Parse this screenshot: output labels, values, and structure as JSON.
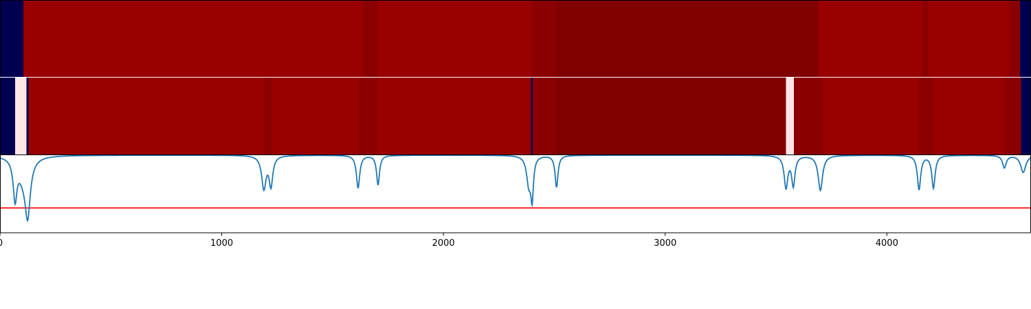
{
  "chart_data": [
    {
      "type": "heatmap",
      "panel": "top",
      "xlim": [
        0,
        4650
      ],
      "segments": [
        {
          "x0": 0,
          "x1": 105,
          "color": "#000050"
        },
        {
          "x0": 105,
          "x1": 1640,
          "color": "#990000"
        },
        {
          "x0": 1640,
          "x1": 1700,
          "color": "#8a0000"
        },
        {
          "x0": 1700,
          "x1": 2400,
          "color": "#990000"
        },
        {
          "x0": 2400,
          "x1": 2510,
          "color": "#8a0000"
        },
        {
          "x0": 2510,
          "x1": 3690,
          "color": "#800000"
        },
        {
          "x0": 3690,
          "x1": 4160,
          "color": "#990000"
        },
        {
          "x0": 4160,
          "x1": 4185,
          "color": "#8c0000"
        },
        {
          "x0": 4185,
          "x1": 4550,
          "color": "#990000"
        },
        {
          "x0": 4550,
          "x1": 4600,
          "color": "#8a0000"
        },
        {
          "x0": 4600,
          "x1": 4650,
          "color": "#000050"
        }
      ]
    },
    {
      "type": "heatmap",
      "panel": "middle",
      "xlim": [
        0,
        4650
      ],
      "segments": [
        {
          "x0": 0,
          "x1": 68,
          "color": "#000050"
        },
        {
          "x0": 68,
          "x1": 120,
          "color": "#ffe6e6"
        },
        {
          "x0": 120,
          "x1": 128,
          "color": "#000050"
        },
        {
          "x0": 128,
          "x1": 1190,
          "color": "#990000"
        },
        {
          "x0": 1190,
          "x1": 1225,
          "color": "#8a0000"
        },
        {
          "x0": 1225,
          "x1": 1615,
          "color": "#990000"
        },
        {
          "x0": 1615,
          "x1": 1700,
          "color": "#8c0000"
        },
        {
          "x0": 1700,
          "x1": 2395,
          "color": "#990000"
        },
        {
          "x0": 2395,
          "x1": 2402,
          "color": "#000050"
        },
        {
          "x0": 2402,
          "x1": 2510,
          "color": "#8a0000"
        },
        {
          "x0": 2510,
          "x1": 3545,
          "color": "#800000"
        },
        {
          "x0": 3545,
          "x1": 3580,
          "color": "#ffe6e6"
        },
        {
          "x0": 3580,
          "x1": 3710,
          "color": "#8a0000"
        },
        {
          "x0": 3710,
          "x1": 4145,
          "color": "#990000"
        },
        {
          "x0": 4145,
          "x1": 4210,
          "color": "#8c0000"
        },
        {
          "x0": 4210,
          "x1": 4530,
          "color": "#990000"
        },
        {
          "x0": 4530,
          "x1": 4605,
          "color": "#8a0000"
        },
        {
          "x0": 4605,
          "x1": 4650,
          "color": "#000050"
        }
      ]
    },
    {
      "type": "line",
      "panel": "bottom",
      "xlim": [
        0,
        4650
      ],
      "ylim": [
        -1,
        0
      ],
      "line_color": "#1f77b4",
      "threshold": {
        "y": -0.68,
        "color": "#ff0000"
      },
      "baseline": 0,
      "dips": [
        {
          "x": 68,
          "depth": 0.5,
          "width": 10
        },
        {
          "x": 105,
          "depth": 0.24,
          "width": 30
        },
        {
          "x": 125,
          "depth": 0.66,
          "width": 14
        },
        {
          "x": 1190,
          "depth": 0.42,
          "width": 12
        },
        {
          "x": 1222,
          "depth": 0.38,
          "width": 10
        },
        {
          "x": 1615,
          "depth": 0.42,
          "width": 9
        },
        {
          "x": 1705,
          "depth": 0.38,
          "width": 8
        },
        {
          "x": 2385,
          "depth": 0.36,
          "width": 12
        },
        {
          "x": 2400,
          "depth": 0.5,
          "width": 7
        },
        {
          "x": 2510,
          "depth": 0.41,
          "width": 8
        },
        {
          "x": 3545,
          "depth": 0.41,
          "width": 10
        },
        {
          "x": 3578,
          "depth": 0.38,
          "width": 9
        },
        {
          "x": 3700,
          "depth": 0.45,
          "width": 12
        },
        {
          "x": 4145,
          "depth": 0.44,
          "width": 9
        },
        {
          "x": 4210,
          "depth": 0.42,
          "width": 9
        },
        {
          "x": 4530,
          "depth": 0.16,
          "width": 10
        },
        {
          "x": 4615,
          "depth": 0.22,
          "width": 14
        }
      ],
      "xticks": [
        0,
        1000,
        2000,
        3000,
        4000
      ],
      "xtick_labels": [
        "0",
        "1000",
        "2000",
        "3000",
        "4000"
      ]
    }
  ]
}
